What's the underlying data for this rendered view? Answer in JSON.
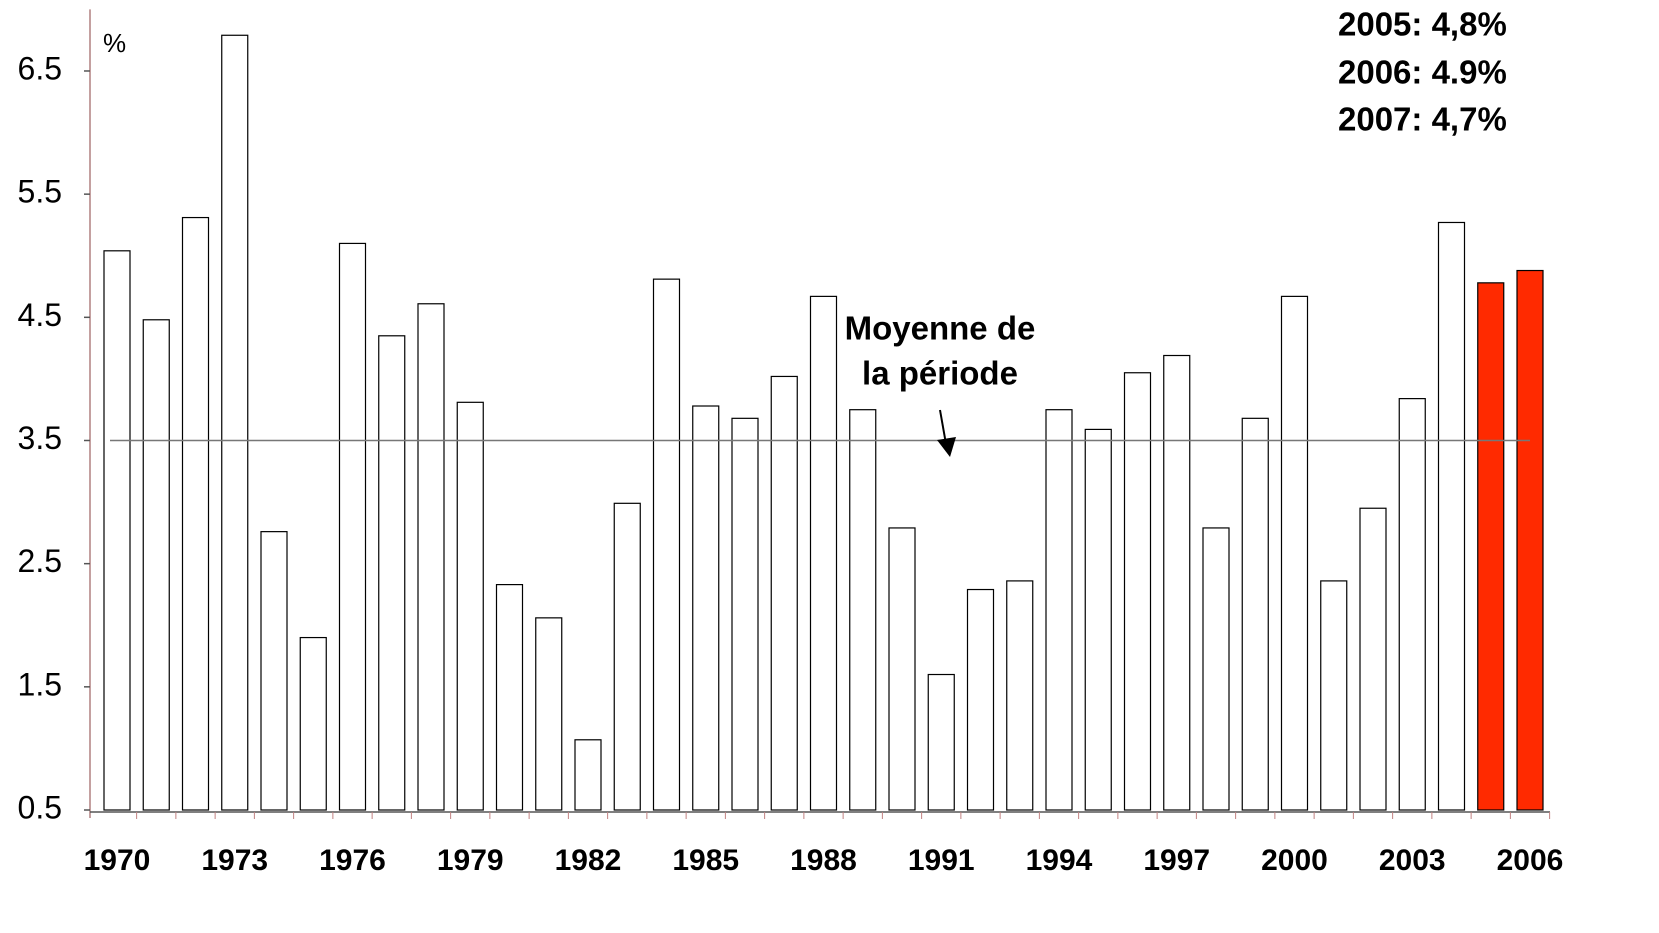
{
  "chart_data": {
    "type": "bar",
    "y_unit_label": "%",
    "categories": [
      "1970",
      null,
      null,
      "1973",
      null,
      null,
      "1976",
      null,
      null,
      "1979",
      null,
      null,
      "1982",
      null,
      null,
      "1985",
      null,
      null,
      "1988",
      null,
      null,
      "1991",
      null,
      null,
      "1994",
      null,
      null,
      "1997",
      null,
      null,
      "2000",
      null,
      null,
      "2003",
      null,
      null,
      "2006"
    ],
    "values": [
      5.04,
      4.48,
      5.31,
      6.79,
      2.76,
      1.9,
      5.1,
      4.35,
      4.61,
      3.81,
      2.33,
      2.06,
      1.07,
      2.99,
      4.81,
      3.78,
      3.68,
      4.02,
      4.67,
      3.75,
      2.79,
      1.6,
      2.29,
      2.36,
      3.75,
      3.59,
      4.05,
      4.19,
      2.79,
      3.68,
      4.67,
      2.36,
      2.95,
      3.84,
      5.27,
      4.78,
      4.88
    ],
    "colors": [
      "#ffffff",
      "#ffffff",
      "#ffffff",
      "#ffffff",
      "#ffffff",
      "#ffffff",
      "#ffffff",
      "#ffffff",
      "#ffffff",
      "#ffffff",
      "#ffffff",
      "#ffffff",
      "#ffffff",
      "#ffffff",
      "#ffffff",
      "#ffffff",
      "#ffffff",
      "#ffffff",
      "#ffffff",
      "#ffffff",
      "#ffffff",
      "#ffffff",
      "#ffffff",
      "#ffffff",
      "#ffffff",
      "#ffffff",
      "#ffffff",
      "#ffffff",
      "#ffffff",
      "#ffffff",
      "#ffffff",
      "#ffffff",
      "#ffffff",
      "#ffffff",
      "#ffffff",
      "#ff2a00",
      "#ff2a00"
    ],
    "ylim": [
      0.5,
      7
    ],
    "yticks": [
      0.5,
      1.5,
      2.5,
      3.5,
      4.5,
      5.5,
      6.5
    ],
    "mean_line": {
      "value": 3.5,
      "label_line1": "Moyenne de",
      "label_line2": "la période"
    },
    "annotations": [
      "2005: 4,8%",
      "2006: 4.9%",
      "2007: 4,7%"
    ]
  }
}
